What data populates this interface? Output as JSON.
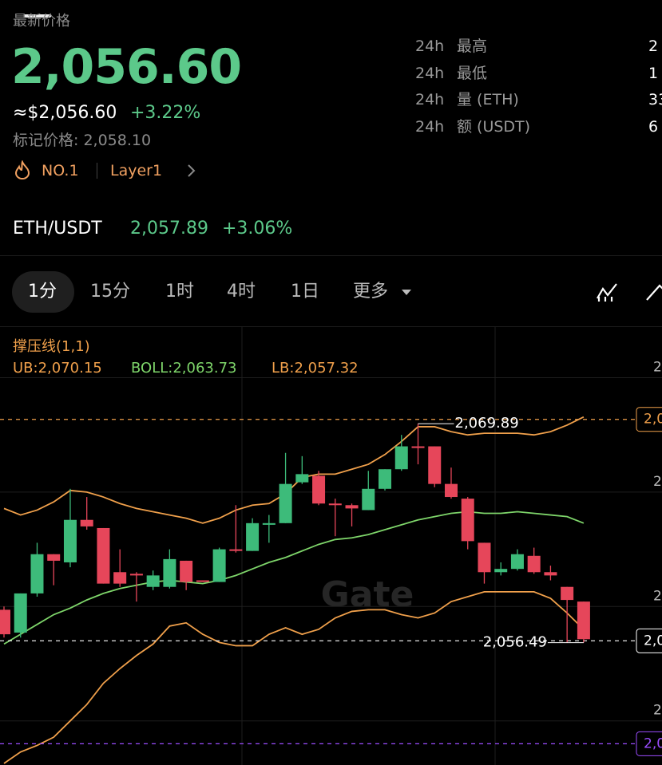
{
  "header": {
    "label": "最新价格",
    "price": "2,056.60",
    "usd": "≈$2,056.60",
    "change": "+3.22%",
    "mark_price": "标记价格: 2,058.10",
    "rank": "NO.1",
    "tag": "Layer1"
  },
  "stats": [
    {
      "period": "24h",
      "label": "最高",
      "value": "2"
    },
    {
      "period": "24h",
      "label": "最低",
      "value": "1"
    },
    {
      "period": "24h",
      "label": "量 (ETH)",
      "value": "33"
    },
    {
      "period": "24h",
      "label": "额 (USDT)",
      "value": "6"
    }
  ],
  "pair": {
    "name": "ETH/USDT",
    "price": "2,057.89",
    "change": "+3.06%"
  },
  "tabs": [
    "1分",
    "15分",
    "1时",
    "4时",
    "1日",
    "更多"
  ],
  "chart_data": {
    "type": "candlestick",
    "indicator": "撑压线(1,1)",
    "watermark": "Gate",
    "up_color": "#3dbb7a",
    "down_color": "#e6465a",
    "ylim": [
      2049,
      2075.8
    ],
    "yticks": [
      {
        "value": 2072.7,
        "label": "2"
      },
      {
        "value": 2065.7,
        "label": "2"
      },
      {
        "value": 2058.7,
        "label": "2"
      },
      {
        "value": 2051.7,
        "label": "2"
      }
    ],
    "candles": {
      "open": [
        2058.5,
        2057.1,
        2059.5,
        2061.9,
        2061.4,
        2064.0,
        2063.5,
        2060.8,
        2060.7,
        2059.9,
        2059.9,
        2061.5,
        2060.3,
        2060.2,
        2062.2,
        2062.1,
        2063.7,
        2063.8,
        2066.3,
        2066.7,
        2065.0,
        2064.9,
        2064.6,
        2065.9,
        2067.1,
        2068.5,
        2068.5,
        2066.2,
        2065.3,
        2062.6,
        2060.8,
        2061.0,
        2061.8,
        2060.8,
        2059.9,
        2059.0
      ],
      "high": [
        2058.7,
        2059.5,
        2062.6,
        2061.9,
        2065.9,
        2065.4,
        2063.5,
        2062.2,
        2060.8,
        2060.9,
        2062.2,
        2061.5,
        2060.3,
        2062.3,
        2064.9,
        2064.1,
        2064.3,
        2068.1,
        2067.9,
        2067.0,
        2065.3,
        2065.0,
        2067.0,
        2067.1,
        2069.2,
        2069.89,
        2068.5,
        2067.2,
        2065.4,
        2062.6,
        2061.4,
        2062.2,
        2062.3,
        2061.2,
        2059.9,
        2059.0
      ],
      "low": [
        2056.8,
        2056.8,
        2059.3,
        2060.0,
        2061.1,
        2063.4,
        2060.1,
        2059.9,
        2059.0,
        2059.7,
        2059.8,
        2059.7,
        2060.2,
        2060.2,
        2062.0,
        2062.1,
        2062.6,
        2063.8,
        2066.2,
        2064.9,
        2063.0,
        2063.6,
        2064.6,
        2065.8,
        2067.0,
        2067.4,
        2066.0,
        2065.3,
        2062.2,
        2060.1,
        2060.6,
        2060.9,
        2060.7,
        2060.3,
        2056.5,
        2056.49
      ],
      "close": [
        2057.0,
        2059.5,
        2061.9,
        2061.5,
        2064.0,
        2063.6,
        2060.1,
        2060.1,
        2060.6,
        2060.6,
        2061.6,
        2060.2,
        2060.2,
        2062.2,
        2062.1,
        2063.8,
        2063.8,
        2066.2,
        2066.8,
        2065.0,
        2064.9,
        2064.7,
        2065.9,
        2067.1,
        2068.5,
        2068.4,
        2066.2,
        2065.4,
        2062.7,
        2060.8,
        2061.0,
        2061.9,
        2060.8,
        2060.6,
        2059.1,
        2056.7
      ]
    },
    "series": [
      {
        "name": "UB:2,070.15",
        "color": "#f0a04b",
        "values": [
          2064.7,
          2064.3,
          2064.6,
          2065.1,
          2065.8,
          2065.7,
          2065.4,
          2065.0,
          2064.7,
          2064.5,
          2064.3,
          2064.1,
          2063.8,
          2064.1,
          2064.6,
          2064.9,
          2065.0,
          2065.6,
          2066.6,
          2066.8,
          2066.8,
          2067.1,
          2067.4,
          2068.0,
          2068.8,
          2069.7,
          2069.7,
          2069.4,
          2069.2,
          2069.3,
          2069.3,
          2069.3,
          2069.2,
          2069.4,
          2069.8,
          2070.3
        ]
      },
      {
        "name": "BOLL:2,063.73",
        "color": "#7ed56a",
        "values": [
          2056.4,
          2057.0,
          2057.6,
          2058.2,
          2058.6,
          2059.1,
          2059.5,
          2059.8,
          2060.0,
          2060.2,
          2060.3,
          2060.2,
          2060.1,
          2060.3,
          2060.6,
          2061.0,
          2061.4,
          2061.7,
          2062.1,
          2062.5,
          2062.8,
          2062.9,
          2063.1,
          2063.4,
          2063.7,
          2064.0,
          2064.2,
          2064.4,
          2064.5,
          2064.4,
          2064.4,
          2064.5,
          2064.4,
          2064.3,
          2064.2,
          2063.8
        ]
      },
      {
        "name": "LB:2,057.32",
        "color": "#f0a04b",
        "values": [
          2049.1,
          2049.8,
          2050.2,
          2050.7,
          2051.7,
          2052.7,
          2054.0,
          2054.9,
          2055.7,
          2056.4,
          2057.5,
          2057.7,
          2057.0,
          2056.5,
          2056.3,
          2056.3,
          2057.0,
          2057.4,
          2057.0,
          2057.3,
          2058.0,
          2058.4,
          2058.5,
          2058.5,
          2058.2,
          2058.0,
          2058.3,
          2059.0,
          2059.3,
          2059.6,
          2059.6,
          2059.6,
          2059.6,
          2059.2,
          2058.3,
          2057.3
        ]
      }
    ],
    "price_lines": [
      {
        "value": 2070.15,
        "label": "2,0",
        "color": "#f0a04b"
      },
      {
        "value": 2056.6,
        "label": "2,0",
        "color": "#ffffff"
      },
      {
        "value": 2050.3,
        "label": "2,0",
        "color": "#9b4dff"
      }
    ],
    "annotations": [
      {
        "value": 2069.89,
        "label": "2,069.89"
      },
      {
        "value": 2056.49,
        "label": "2,056.49"
      }
    ]
  }
}
